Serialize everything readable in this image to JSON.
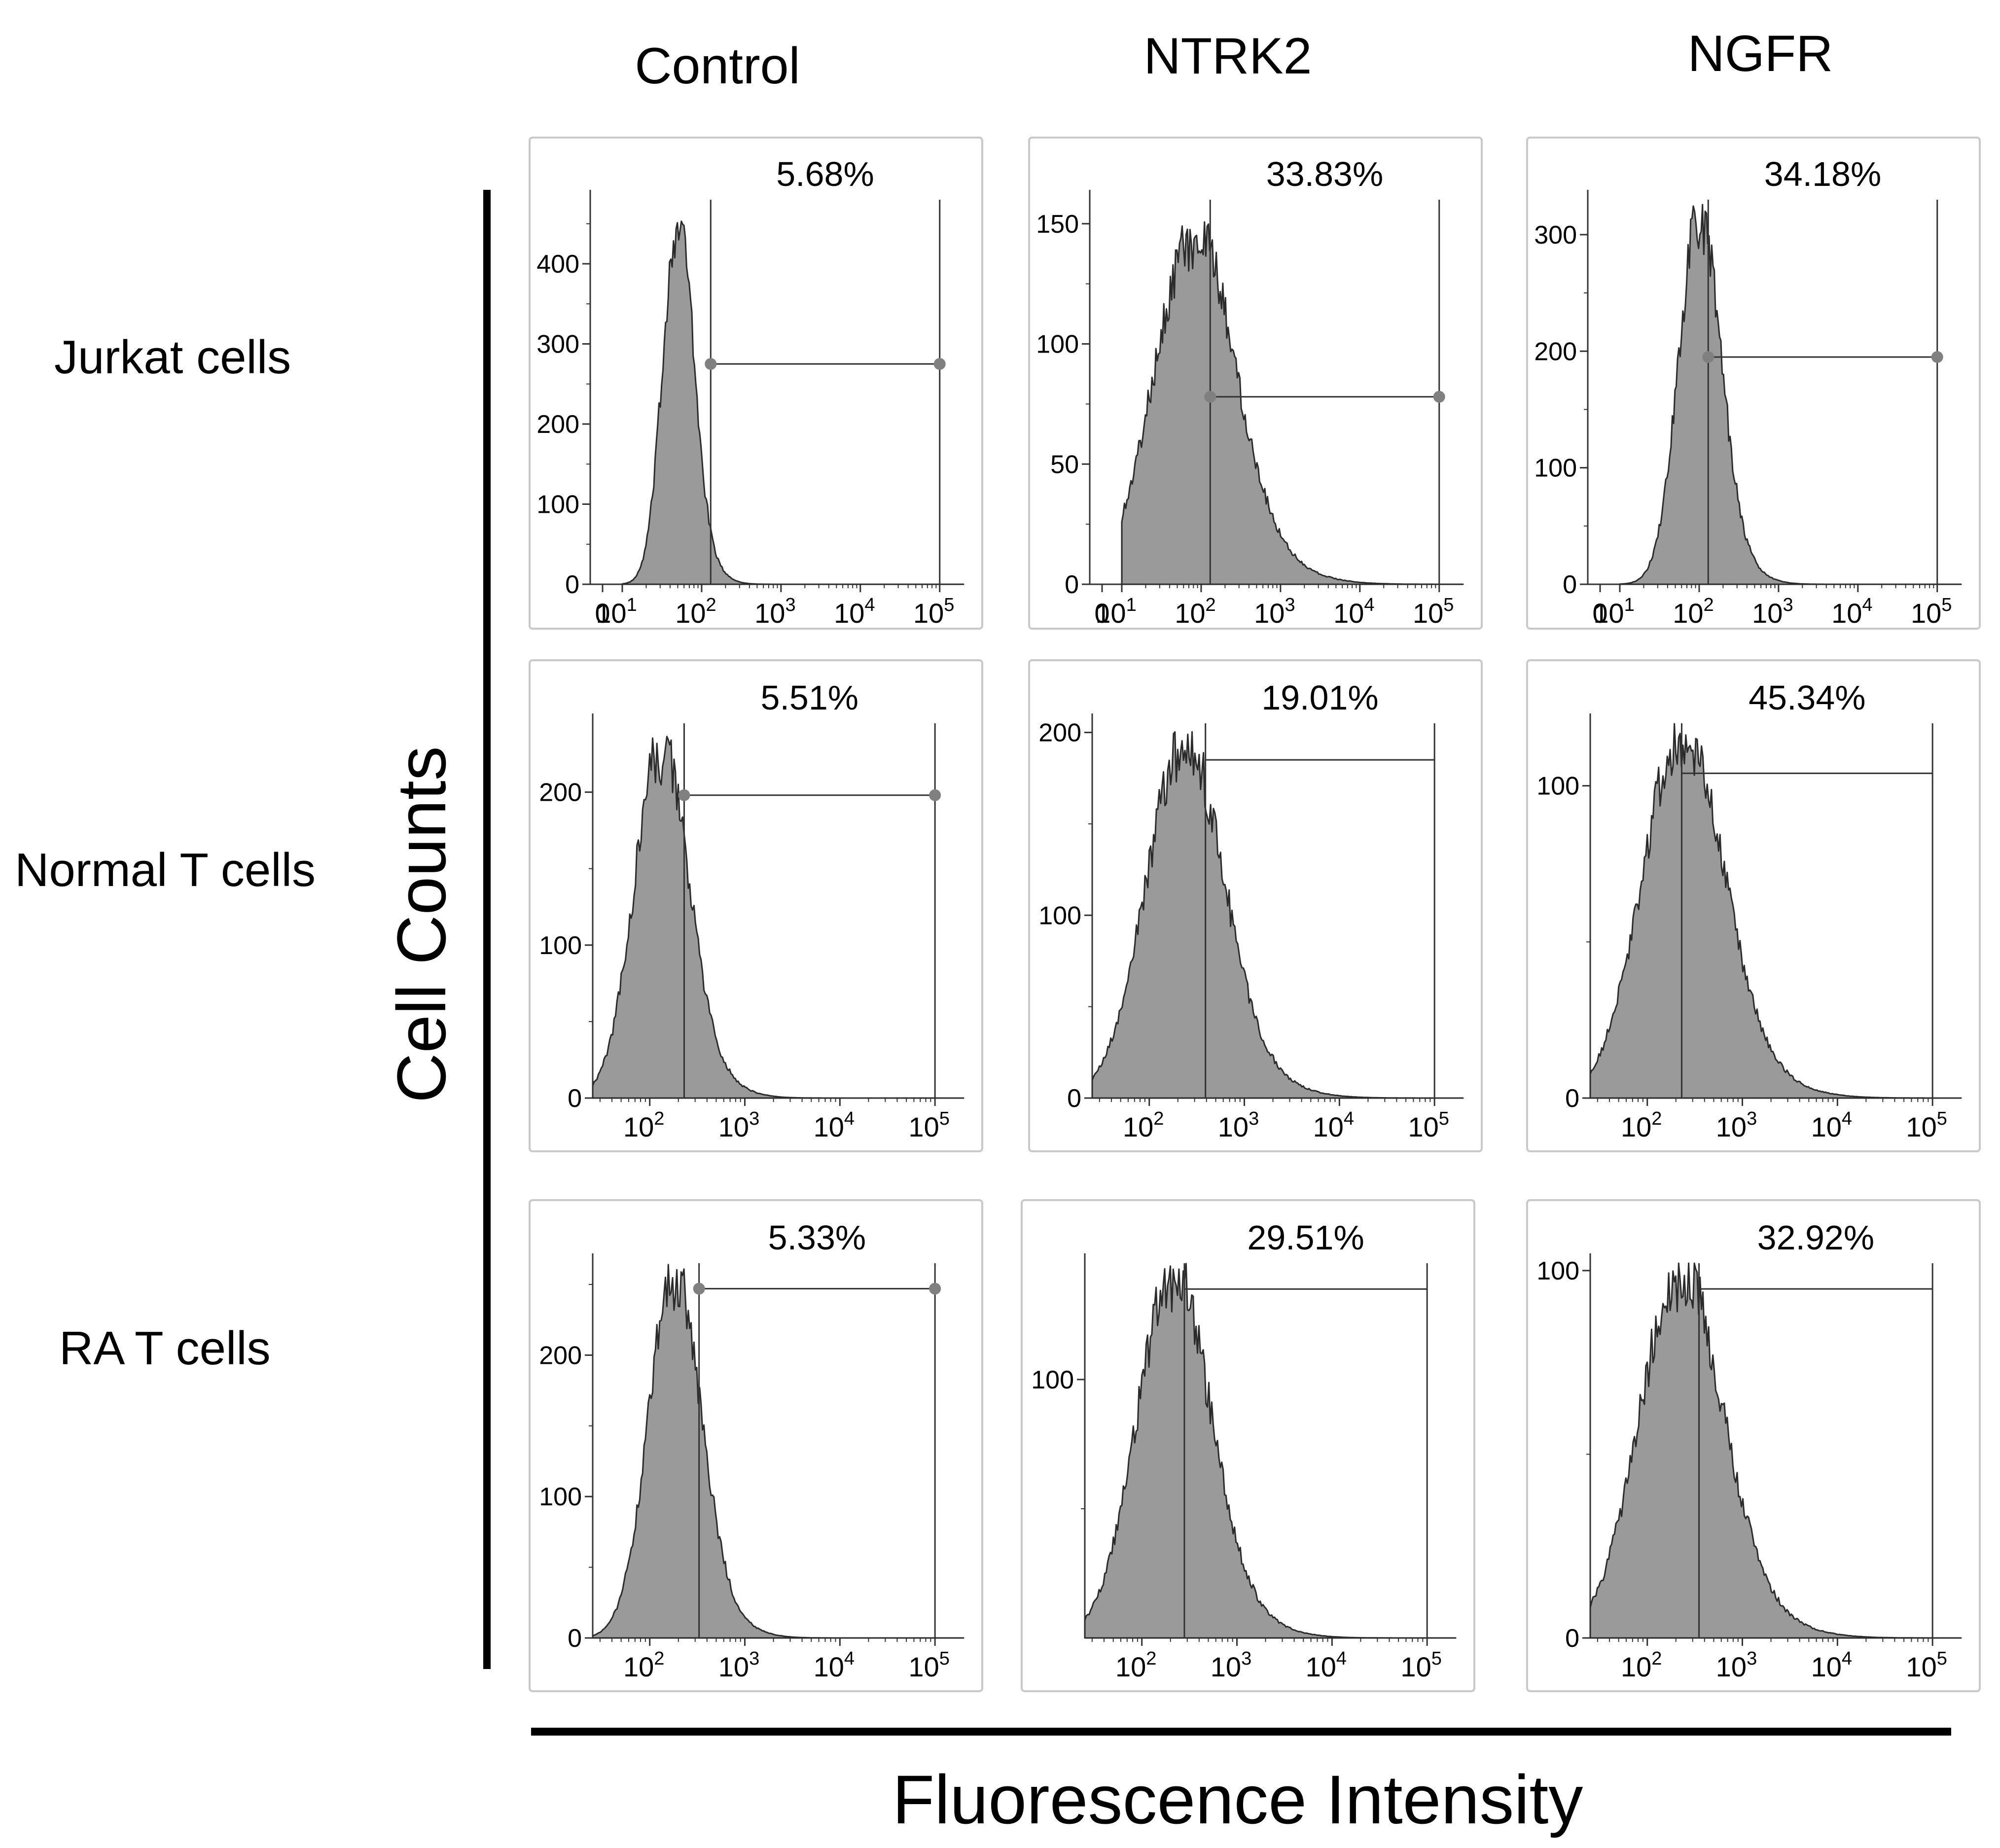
{
  "column_titles": [
    "Control",
    "NTRK2",
    "NGFR"
  ],
  "row_labels": [
    "Jurkat cells",
    "Normal T cells",
    "RA T cells"
  ],
  "y_axis_label": "Cell Counts",
  "x_axis_label": "Fluorescence Intensity",
  "chart_data": [
    {
      "type": "area",
      "row": "Jurkat cells",
      "column": "Control",
      "title": "5.68%",
      "ylim": [
        0,
        480
      ],
      "yticks": [
        0,
        100,
        200,
        300,
        400
      ],
      "x_min": 0,
      "xticks": [
        "0",
        "10^1",
        "10^2",
        "10^3",
        "10^4",
        "10^5"
      ],
      "peak_x": 50,
      "peak_y": 440,
      "spread": 0.19,
      "gate_x": [
        130,
        100000
      ],
      "gate_y": 275,
      "gate_markers": true,
      "gated_percent": 5.68
    },
    {
      "type": "area",
      "row": "Jurkat cells",
      "column": "NTRK2",
      "title": "33.83%",
      "ylim": [
        0,
        160
      ],
      "yticks": [
        0,
        50,
        100,
        150
      ],
      "x_min": 0,
      "xticks": [
        "0",
        "10^1",
        "10^2",
        "10^3",
        "10^4",
        "10^5"
      ],
      "peak_x": 80,
      "peak_y": 140,
      "spread": 0.5,
      "gate_x": [
        130,
        100000
      ],
      "gate_y": 78,
      "gate_markers": true,
      "gated_percent": 33.83
    },
    {
      "type": "area",
      "row": "Jurkat cells",
      "column": "NGFR",
      "title": "34.18%",
      "ylim": [
        0,
        330
      ],
      "yticks": [
        0,
        100,
        200,
        300
      ],
      "x_min": 0,
      "xticks": [
        "0",
        "10^1",
        "10^2",
        "10^3",
        "10^4",
        "10^5"
      ],
      "peak_x": 100,
      "peak_y": 305,
      "spread": 0.26,
      "gate_x": [
        130,
        100000
      ],
      "gate_y": 195,
      "gate_markers": true,
      "gated_percent": 34.18
    },
    {
      "type": "area",
      "row": "Normal T cells",
      "column": "Control",
      "title": "5.51%",
      "ylim": [
        0,
        245
      ],
      "yticks": [
        0,
        100,
        200
      ],
      "x_min": null,
      "xticks": [
        "10^2",
        "10^3",
        "10^4",
        "10^5"
      ],
      "peak_x": 130,
      "peak_y": 220,
      "spread": 0.28,
      "gate_x": [
        230,
        100000
      ],
      "gate_y": 198,
      "gate_markers": true,
      "gated_percent": 5.51
    },
    {
      "type": "area",
      "row": "Normal T cells",
      "column": "NTRK2",
      "title": "19.01%",
      "ylim": [
        0,
        205
      ],
      "yticks": [
        0,
        100,
        200
      ],
      "x_min": null,
      "xticks": [
        "10^2",
        "10^3",
        "10^4",
        "10^5"
      ],
      "peak_x": 230,
      "peak_y": 186,
      "spread": 0.4,
      "gate_x": [
        390,
        100000
      ],
      "gate_y": 185,
      "gate_markers": false,
      "gated_percent": 19.01
    },
    {
      "type": "area",
      "row": "Normal T cells",
      "column": "NGFR",
      "title": "45.34%",
      "ylim": [
        0,
        120
      ],
      "yticks": [
        0,
        100
      ],
      "x_min": null,
      "xticks": [
        "10^2",
        "10^3",
        "10^4",
        "10^5"
      ],
      "peak_x": 230,
      "peak_y": 112,
      "spread": 0.42,
      "gate_x": [
        230,
        100000
      ],
      "gate_y": 104,
      "gate_markers": false,
      "gated_percent": 45.34
    },
    {
      "type": "area",
      "row": "RA T cells",
      "column": "Control",
      "title": "5.33%",
      "ylim": [
        0,
        265
      ],
      "yticks": [
        0,
        100,
        200
      ],
      "x_min": null,
      "xticks": [
        "10^2",
        "10^3",
        "10^4",
        "10^5"
      ],
      "peak_x": 180,
      "peak_y": 248,
      "spread": 0.27,
      "gate_x": [
        330,
        100000
      ],
      "gate_y": 247,
      "gate_markers": true,
      "gated_percent": 5.33
    },
    {
      "type": "area",
      "row": "RA T cells",
      "column": "NTRK2",
      "title": "29.51%",
      "ylim": [
        0,
        145
      ],
      "yticks": [
        100
      ],
      "x_min": null,
      "xticks": [
        "10^2",
        "10^3",
        "10^4",
        "10^5"
      ],
      "peak_x": 210,
      "peak_y": 135,
      "spread": 0.38,
      "gate_x": [
        280,
        100000
      ],
      "gate_y": 135,
      "gate_markers": false,
      "gated_percent": 29.51
    },
    {
      "type": "area",
      "row": "RA T cells",
      "column": "NGFR",
      "title": "32.92%",
      "ylim": [
        0,
        102
      ],
      "yticks": [
        0,
        100
      ],
      "x_min": null,
      "xticks": [
        "10^2",
        "10^3",
        "10^4",
        "10^5"
      ],
      "peak_x": 220,
      "peak_y": 96,
      "spread": 0.43,
      "gate_x": [
        350,
        100000
      ],
      "gate_y": 95,
      "gate_markers": false,
      "gated_percent": 32.92
    }
  ]
}
